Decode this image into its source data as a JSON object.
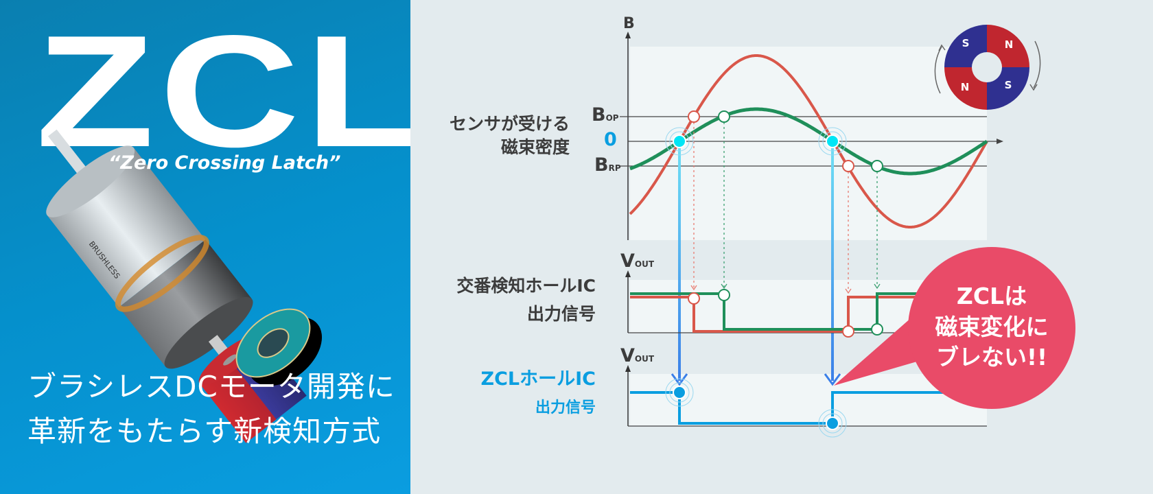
{
  "hero": {
    "logo": "ZCL",
    "tagline": "“Zero Crossing Latch”",
    "headline_line1": "ブラシレスDCモータ開発に",
    "headline_line2": "革新をもたらす新検知方式",
    "motor_label": "BRUSHLESS",
    "colors": {
      "background": "#0590cc",
      "text": "#ffffff"
    }
  },
  "diagram": {
    "flux_label_line1": "センサが受ける",
    "flux_label_line2": "磁束密度",
    "axis_b": "B",
    "zero_label": "0",
    "bop_main": "B",
    "bop_sub": "OP",
    "brp_main": "B",
    "brp_sub": "RP",
    "alt_label_line1": "交番検知ホールIC",
    "alt_label_line2": "出力信号",
    "zcl_label_line1": "ZCLホールIC",
    "zcl_label_line2": "出力信号",
    "vout_main": "V",
    "vout_sub": "OUT",
    "magnet": {
      "top_left": "S",
      "top_right": "N",
      "bottom_left": "N",
      "bottom_right": "S"
    },
    "callout_line1": "ZCLは",
    "callout_line2": "磁束変化に",
    "callout_line3": "ブレない!!",
    "colors": {
      "strong_field": "#d9574a",
      "weak_field": "#1f8f5a",
      "zcl_output": "#0a9ee0",
      "zero_point": "#00e5f5",
      "callout": "#e94b68",
      "plot_bg": "#f1f6f7"
    }
  }
}
